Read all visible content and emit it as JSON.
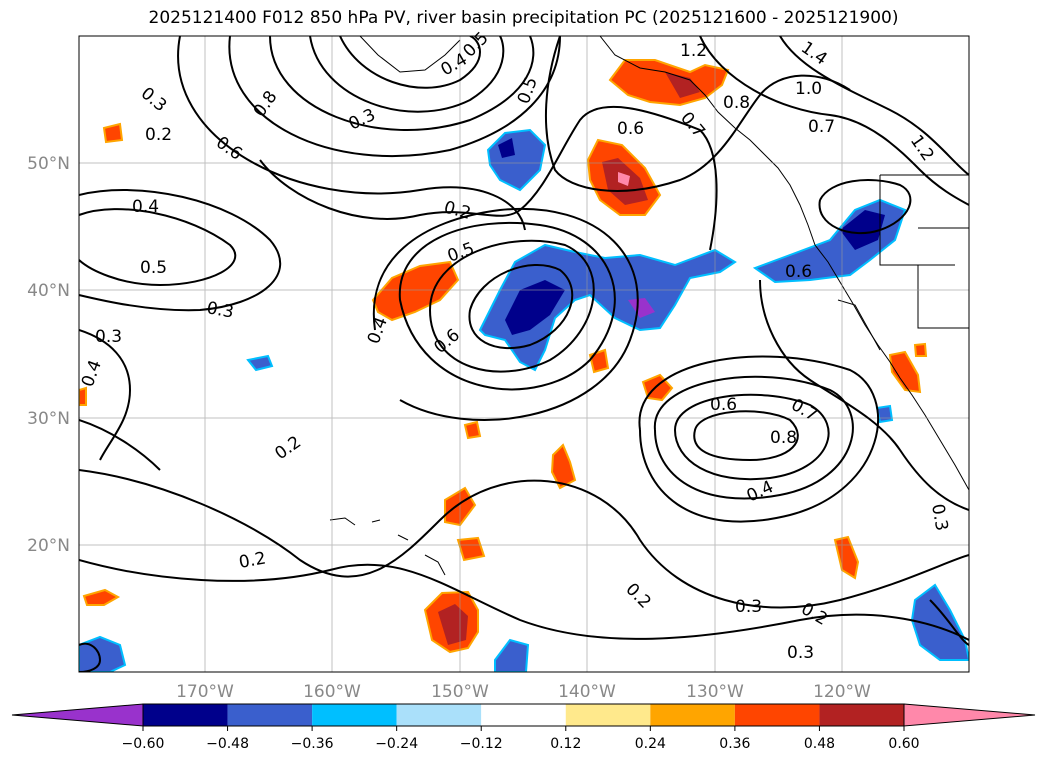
{
  "title": "2025121400 F012 850 hPa PV, river basin precipitation PC (2025121600 - 2025121900)",
  "longitude_labels": [
    "170°W",
    "160°W",
    "150°W",
    "140°W",
    "130°W",
    "120°W"
  ],
  "latitude_labels": [
    "50°N",
    "40°N",
    "30°N",
    "20°N"
  ],
  "colorbar": {
    "tick_labels": [
      "−0.60",
      "−0.48",
      "−0.36",
      "−0.24",
      "−0.12",
      "0.12",
      "0.24",
      "0.36",
      "0.48",
      "0.60"
    ],
    "colors": [
      "#9932cc",
      "#00008b",
      "#3a5fcd",
      "#00bfff",
      "#aae0fa",
      "#ffffff",
      "#ffe98c",
      "#ffa500",
      "#ff4500",
      "#b22222",
      "#ff88aa"
    ]
  },
  "contour_labels": [
    "0.2",
    "0.3",
    "0.4",
    "0.5",
    "0.6",
    "0.7",
    "0.8",
    "1.0",
    "1.2",
    "1.4",
    "0.2",
    "0.3",
    "0.4",
    "0.5",
    "0.6",
    "0.4",
    "0.3",
    "0.2",
    "0.6",
    "0.7",
    "0.8",
    "0.4",
    "0.6",
    "0.5",
    "0.2",
    "0.3",
    "0.2",
    "0.3",
    "0.4",
    "0.3",
    "0.2",
    "0.6",
    "0.7",
    "0.8",
    "0.5",
    "0.3",
    "1.2"
  ]
}
